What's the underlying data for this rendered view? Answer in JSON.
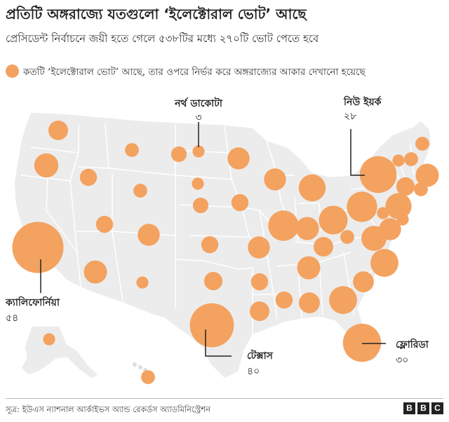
{
  "title": "প্রতিটি অঙ্গরাজ্যে যতগুলো ‘ইলেক্টোরাল ভোট’ আছে",
  "subtitle": "প্রেসিডেন্ট নির্বাচনে জয়ী হতে গেলে ৫৩৮টির মধ্যে ২৭০টি ভোট পেতে হবে",
  "legend": "কতটি ‘ইলেক্টোরাল ভোট’ আছে, তার ওপরে নির্ভর করে অঙ্গরাজ্যের আকার দেখানো হয়েছে",
  "source": "সূত্র: ইউএস ন্যাশনাল আর্কাইভস অ্যান্ড রেকর্ডস অ্যাডমিনিস্ট্রেশন",
  "brand": [
    "B",
    "B",
    "C"
  ],
  "colors": {
    "bubble": "#f4a260",
    "state_fill": "#ececec",
    "state_border": "#ffffff",
    "leader": "#222222"
  },
  "callouts": [
    {
      "state": "North Dakota",
      "name": "নর্থ ডাকোটা",
      "votes": "৩"
    },
    {
      "state": "New York",
      "name": "নিউ ইয়র্ক",
      "votes": "২৮"
    },
    {
      "state": "California",
      "name": "ক্যালিফোর্নিয়া",
      "votes": "৫৪"
    },
    {
      "state": "Texas",
      "name": "টেক্সাস",
      "votes": "৪০"
    },
    {
      "state": "Florida",
      "name": "ফ্লোরিডা",
      "votes": "৩০"
    }
  ],
  "states": [
    {
      "abbr": "WA",
      "votes": 12
    },
    {
      "abbr": "OR",
      "votes": 8
    },
    {
      "abbr": "CA",
      "votes": 54
    },
    {
      "abbr": "NV",
      "votes": 6
    },
    {
      "abbr": "ID",
      "votes": 4
    },
    {
      "abbr": "MT",
      "votes": 4
    },
    {
      "abbr": "WY",
      "votes": 3
    },
    {
      "abbr": "UT",
      "votes": 6
    },
    {
      "abbr": "AZ",
      "votes": 11
    },
    {
      "abbr": "CO",
      "votes": 10
    },
    {
      "abbr": "NM",
      "votes": 5
    },
    {
      "abbr": "ND",
      "votes": 3
    },
    {
      "abbr": "SD",
      "votes": 3
    },
    {
      "abbr": "NE",
      "votes": 5
    },
    {
      "abbr": "KS",
      "votes": 6
    },
    {
      "abbr": "OK",
      "votes": 7
    },
    {
      "abbr": "TX",
      "votes": 40
    },
    {
      "abbr": "MN",
      "votes": 10
    },
    {
      "abbr": "IA",
      "votes": 6
    },
    {
      "abbr": "MO",
      "votes": 10
    },
    {
      "abbr": "AR",
      "votes": 6
    },
    {
      "abbr": "LA",
      "votes": 8
    },
    {
      "abbr": "WI",
      "votes": 10
    },
    {
      "abbr": "IL",
      "votes": 19
    },
    {
      "abbr": "MI",
      "votes": 15
    },
    {
      "abbr": "IN",
      "votes": 11
    },
    {
      "abbr": "OH",
      "votes": 17
    },
    {
      "abbr": "KY",
      "votes": 8
    },
    {
      "abbr": "TN",
      "votes": 11
    },
    {
      "abbr": "MS",
      "votes": 6
    },
    {
      "abbr": "AL",
      "votes": 9
    },
    {
      "abbr": "GA",
      "votes": 16
    },
    {
      "abbr": "FL",
      "votes": 30
    },
    {
      "abbr": "SC",
      "votes": 9
    },
    {
      "abbr": "NC",
      "votes": 16
    },
    {
      "abbr": "VA",
      "votes": 13
    },
    {
      "abbr": "WV",
      "votes": 4
    },
    {
      "abbr": "PA",
      "votes": 19
    },
    {
      "abbr": "NY",
      "votes": 28
    },
    {
      "abbr": "MD",
      "votes": 10
    },
    {
      "abbr": "DE",
      "votes": 3
    },
    {
      "abbr": "NJ",
      "votes": 14
    },
    {
      "abbr": "CT",
      "votes": 7
    },
    {
      "abbr": "RI",
      "votes": 4
    },
    {
      "abbr": "MA",
      "votes": 11
    },
    {
      "abbr": "VT",
      "votes": 3
    },
    {
      "abbr": "NH",
      "votes": 4
    },
    {
      "abbr": "ME",
      "votes": 4
    },
    {
      "abbr": "DC",
      "votes": 3
    },
    {
      "abbr": "AK",
      "votes": 3
    },
    {
      "abbr": "HI",
      "votes": 4
    }
  ]
}
